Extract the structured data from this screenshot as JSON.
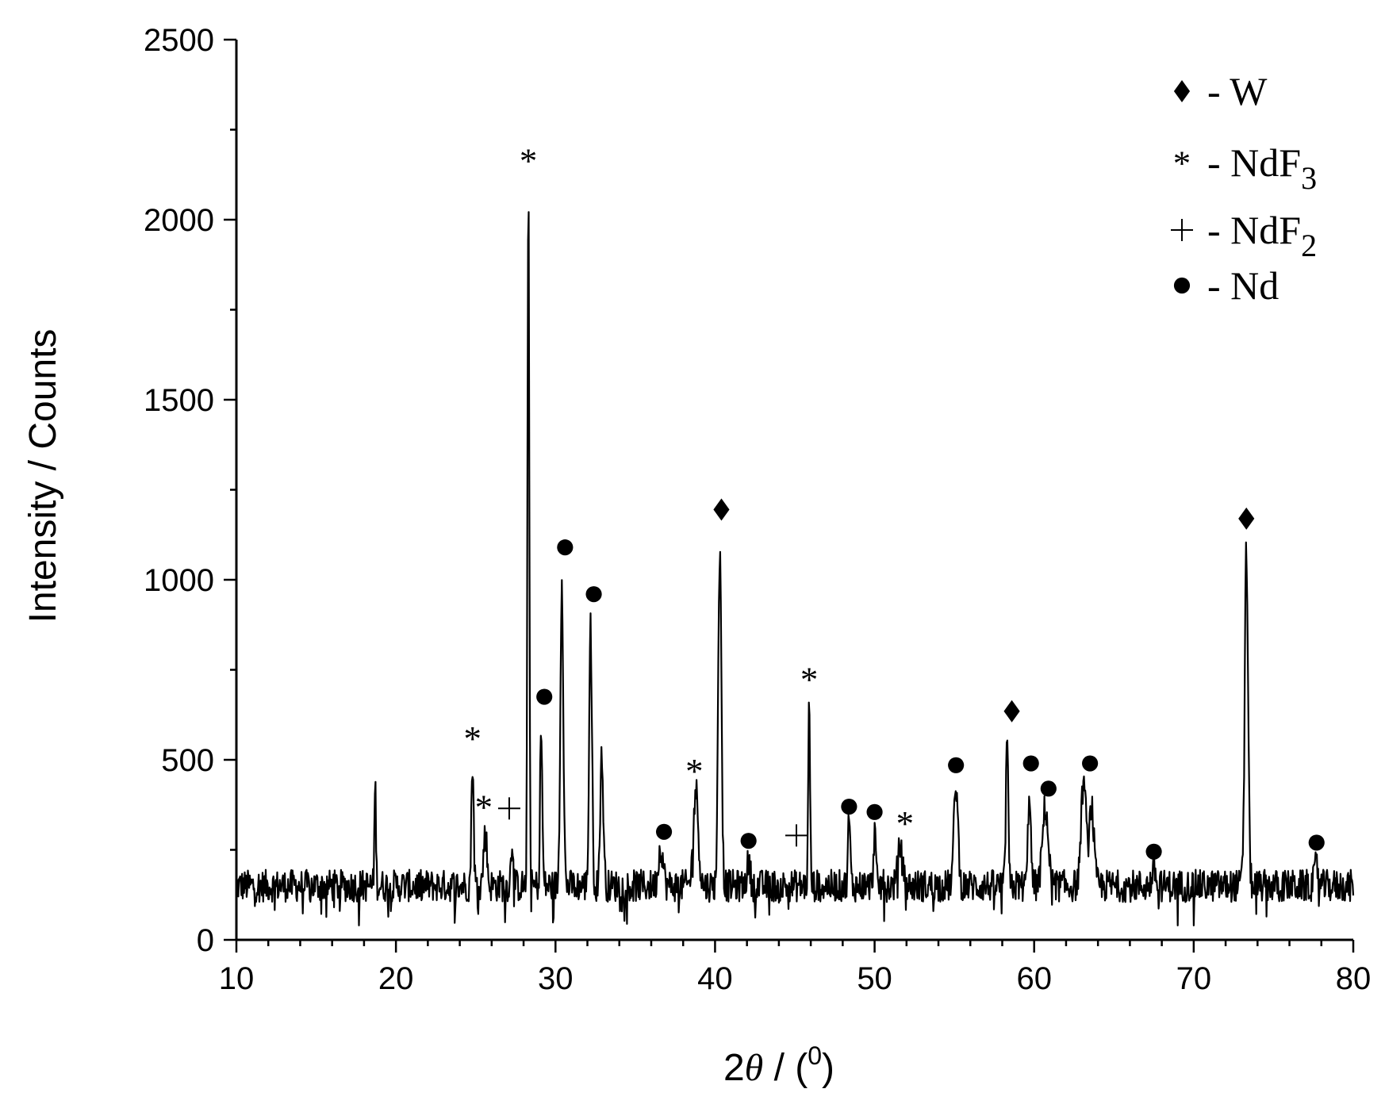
{
  "chart_data": {
    "type": "line",
    "xlabel_prefix": "2",
    "xlabel_symbol": "θ",
    "xlabel_suffix": " / (",
    "xlabel_sup": "0",
    "xlabel_close": ")",
    "ylabel": "Intensity / Counts",
    "xlim": [
      10,
      80
    ],
    "ylim": [
      0,
      2500
    ],
    "x_ticks": [
      10,
      20,
      30,
      40,
      50,
      60,
      70,
      80
    ],
    "y_ticks": [
      0,
      500,
      1000,
      1500,
      2000,
      2500
    ],
    "grid": false,
    "legend_position": "top-right",
    "baseline": {
      "x_start": 10,
      "x_end": 80,
      "level": 150,
      "noise": 45
    },
    "peaks": [
      {
        "x": 18.7,
        "y": 430,
        "w": 0.07
      },
      {
        "x": 24.8,
        "y": 495,
        "w": 0.1
      },
      {
        "x": 25.6,
        "y": 300,
        "w": 0.15
      },
      {
        "x": 27.3,
        "y": 275,
        "w": 0.12
      },
      {
        "x": 28.3,
        "y": 2100,
        "w": 0.08
      },
      {
        "x": 29.1,
        "y": 585,
        "w": 0.1
      },
      {
        "x": 30.4,
        "y": 1005,
        "w": 0.13
      },
      {
        "x": 32.2,
        "y": 905,
        "w": 0.12
      },
      {
        "x": 32.9,
        "y": 505,
        "w": 0.14
      },
      {
        "x": 36.6,
        "y": 260,
        "w": 0.2
      },
      {
        "x": 38.8,
        "y": 415,
        "w": 0.22
      },
      {
        "x": 40.3,
        "y": 1125,
        "w": 0.14
      },
      {
        "x": 42.1,
        "y": 215,
        "w": 0.15
      },
      {
        "x": 45.9,
        "y": 660,
        "w": 0.08
      },
      {
        "x": 48.4,
        "y": 340,
        "w": 0.1
      },
      {
        "x": 50.0,
        "y": 300,
        "w": 0.1
      },
      {
        "x": 51.6,
        "y": 255,
        "w": 0.2
      },
      {
        "x": 55.1,
        "y": 430,
        "w": 0.18
      },
      {
        "x": 58.3,
        "y": 575,
        "w": 0.1
      },
      {
        "x": 59.7,
        "y": 420,
        "w": 0.12
      },
      {
        "x": 60.7,
        "y": 370,
        "w": 0.25
      },
      {
        "x": 63.1,
        "y": 440,
        "w": 0.22
      },
      {
        "x": 63.6,
        "y": 370,
        "w": 0.2
      },
      {
        "x": 67.5,
        "y": 200,
        "w": 0.15
      },
      {
        "x": 73.3,
        "y": 1080,
        "w": 0.15
      },
      {
        "x": 77.7,
        "y": 210,
        "w": 0.15
      }
    ],
    "markers": [
      {
        "symbol": "asterisk",
        "x": 24.8,
        "y": 560
      },
      {
        "symbol": "asterisk",
        "x": 25.5,
        "y": 370
      },
      {
        "symbol": "plus",
        "x": 27.1,
        "y": 365
      },
      {
        "symbol": "asterisk",
        "x": 28.3,
        "y": 2165
      },
      {
        "symbol": "circle",
        "x": 29.3,
        "y": 675
      },
      {
        "symbol": "circle",
        "x": 30.6,
        "y": 1090
      },
      {
        "symbol": "circle",
        "x": 32.4,
        "y": 960
      },
      {
        "symbol": "circle",
        "x": 36.8,
        "y": 300
      },
      {
        "symbol": "asterisk",
        "x": 38.7,
        "y": 470
      },
      {
        "symbol": "diamond",
        "x": 40.4,
        "y": 1195
      },
      {
        "symbol": "circle",
        "x": 42.1,
        "y": 275
      },
      {
        "symbol": "plus",
        "x": 45.1,
        "y": 290
      },
      {
        "symbol": "asterisk",
        "x": 45.9,
        "y": 725
      },
      {
        "symbol": "circle",
        "x": 48.4,
        "y": 370
      },
      {
        "symbol": "circle",
        "x": 50.0,
        "y": 355
      },
      {
        "symbol": "asterisk",
        "x": 51.9,
        "y": 325
      },
      {
        "symbol": "circle",
        "x": 55.1,
        "y": 485
      },
      {
        "symbol": "diamond",
        "x": 58.6,
        "y": 635
      },
      {
        "symbol": "circle",
        "x": 59.8,
        "y": 490
      },
      {
        "symbol": "circle",
        "x": 60.9,
        "y": 420
      },
      {
        "symbol": "circle",
        "x": 63.5,
        "y": 490
      },
      {
        "symbol": "circle",
        "x": 67.5,
        "y": 245
      },
      {
        "symbol": "diamond",
        "x": 73.3,
        "y": 1170
      },
      {
        "symbol": "circle",
        "x": 77.7,
        "y": 270
      }
    ],
    "legend": [
      {
        "symbol": "diamond",
        "label": "- W",
        "sub": ""
      },
      {
        "symbol": "asterisk",
        "label": "- NdF",
        "sub": "3"
      },
      {
        "symbol": "plus",
        "label": "- NdF",
        "sub": "2"
      },
      {
        "symbol": "circle",
        "label": "- Nd",
        "sub": ""
      }
    ]
  }
}
